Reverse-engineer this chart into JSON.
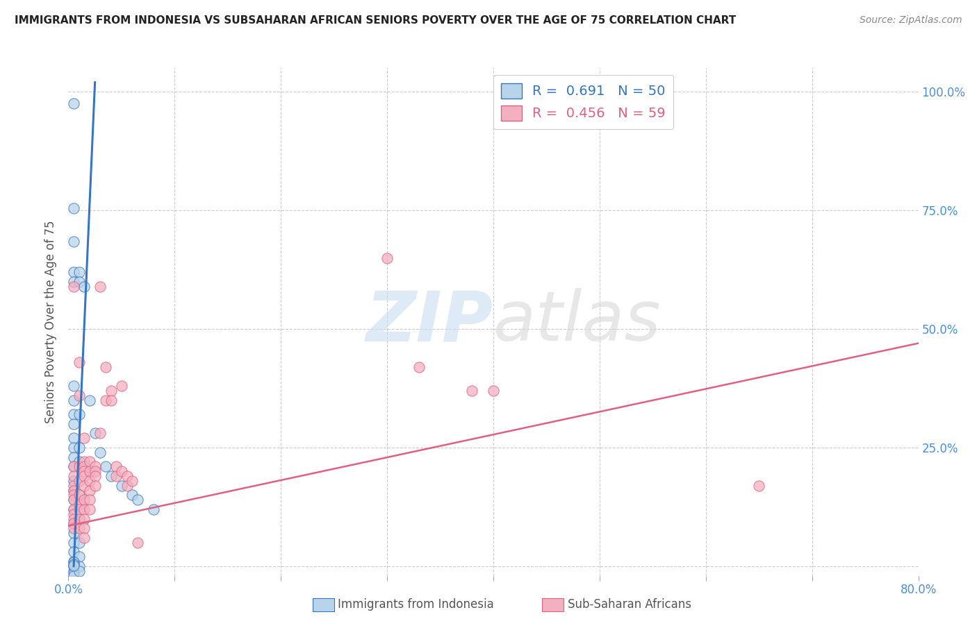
{
  "title": "IMMIGRANTS FROM INDONESIA VS SUBSAHARAN AFRICAN SENIORS POVERTY OVER THE AGE OF 75 CORRELATION CHART",
  "source": "Source: ZipAtlas.com",
  "ylabel": "Seniors Poverty Over the Age of 75",
  "xlim": [
    0,
    0.8
  ],
  "ylim": [
    -0.02,
    1.05
  ],
  "color_indonesia": "#b8d4ea",
  "color_subsaharan": "#f2b0c0",
  "color_line_indonesia": "#3575c3",
  "color_line_subsaharan": "#e06080",
  "watermark": "ZIPatlas",
  "indonesia_points": [
    [
      0.005,
      0.975
    ],
    [
      0.005,
      0.755
    ],
    [
      0.005,
      0.685
    ],
    [
      0.005,
      0.62
    ],
    [
      0.005,
      0.6
    ],
    [
      0.005,
      0.38
    ],
    [
      0.005,
      0.35
    ],
    [
      0.005,
      0.32
    ],
    [
      0.005,
      0.3
    ],
    [
      0.005,
      0.27
    ],
    [
      0.005,
      0.25
    ],
    [
      0.005,
      0.23
    ],
    [
      0.005,
      0.21
    ],
    [
      0.005,
      0.18
    ],
    [
      0.005,
      0.16
    ],
    [
      0.005,
      0.14
    ],
    [
      0.005,
      0.12
    ],
    [
      0.005,
      0.09
    ],
    [
      0.005,
      0.07
    ],
    [
      0.005,
      0.05
    ],
    [
      0.005,
      0.03
    ],
    [
      0.005,
      0.01
    ],
    [
      0.005,
      0.0
    ],
    [
      0.005,
      -0.01
    ],
    [
      0.01,
      0.62
    ],
    [
      0.01,
      0.6
    ],
    [
      0.01,
      0.32
    ],
    [
      0.01,
      0.25
    ],
    [
      0.01,
      0.22
    ],
    [
      0.01,
      0.15
    ],
    [
      0.01,
      0.1
    ],
    [
      0.01,
      0.05
    ],
    [
      0.01,
      0.02
    ],
    [
      0.01,
      0.0
    ],
    [
      0.015,
      0.59
    ],
    [
      0.02,
      0.35
    ],
    [
      0.025,
      0.28
    ],
    [
      0.03,
      0.24
    ],
    [
      0.035,
      0.21
    ],
    [
      0.04,
      0.19
    ],
    [
      0.05,
      0.17
    ],
    [
      0.06,
      0.15
    ],
    [
      0.065,
      0.14
    ],
    [
      0.08,
      0.12
    ],
    [
      0.005,
      -0.015
    ],
    [
      0.005,
      -0.02
    ],
    [
      0.01,
      -0.01
    ],
    [
      0.005,
      0.008
    ],
    [
      0.005,
      0.004
    ],
    [
      0.005,
      0.002
    ]
  ],
  "subsaharan_points": [
    [
      0.005,
      0.59
    ],
    [
      0.01,
      0.43
    ],
    [
      0.03,
      0.59
    ],
    [
      0.005,
      0.21
    ],
    [
      0.005,
      0.19
    ],
    [
      0.005,
      0.17
    ],
    [
      0.005,
      0.16
    ],
    [
      0.005,
      0.15
    ],
    [
      0.005,
      0.14
    ],
    [
      0.005,
      0.12
    ],
    [
      0.005,
      0.11
    ],
    [
      0.005,
      0.1
    ],
    [
      0.005,
      0.09
    ],
    [
      0.005,
      0.08
    ],
    [
      0.01,
      0.36
    ],
    [
      0.01,
      0.21
    ],
    [
      0.01,
      0.18
    ],
    [
      0.01,
      0.15
    ],
    [
      0.01,
      0.13
    ],
    [
      0.01,
      0.12
    ],
    [
      0.01,
      0.1
    ],
    [
      0.01,
      0.08
    ],
    [
      0.015,
      0.27
    ],
    [
      0.015,
      0.22
    ],
    [
      0.015,
      0.21
    ],
    [
      0.015,
      0.2
    ],
    [
      0.015,
      0.19
    ],
    [
      0.015,
      0.17
    ],
    [
      0.015,
      0.14
    ],
    [
      0.015,
      0.12
    ],
    [
      0.015,
      0.1
    ],
    [
      0.015,
      0.08
    ],
    [
      0.015,
      0.06
    ],
    [
      0.02,
      0.22
    ],
    [
      0.02,
      0.2
    ],
    [
      0.02,
      0.18
    ],
    [
      0.02,
      0.16
    ],
    [
      0.02,
      0.14
    ],
    [
      0.02,
      0.12
    ],
    [
      0.025,
      0.21
    ],
    [
      0.025,
      0.2
    ],
    [
      0.025,
      0.19
    ],
    [
      0.025,
      0.17
    ],
    [
      0.03,
      0.28
    ],
    [
      0.035,
      0.42
    ],
    [
      0.035,
      0.35
    ],
    [
      0.04,
      0.37
    ],
    [
      0.04,
      0.35
    ],
    [
      0.045,
      0.21
    ],
    [
      0.045,
      0.19
    ],
    [
      0.05,
      0.38
    ],
    [
      0.05,
      0.2
    ],
    [
      0.055,
      0.19
    ],
    [
      0.055,
      0.17
    ],
    [
      0.06,
      0.18
    ],
    [
      0.065,
      0.05
    ],
    [
      0.3,
      0.65
    ],
    [
      0.33,
      0.42
    ],
    [
      0.38,
      0.37
    ],
    [
      0.4,
      0.37
    ],
    [
      0.65,
      0.17
    ]
  ],
  "indonesia_trend_x": [
    0.005,
    0.025
  ],
  "indonesia_trend_y": [
    0.0,
    1.02
  ],
  "subsaharan_trend_x": [
    0.0,
    0.8
  ],
  "subsaharan_trend_y": [
    0.085,
    0.47
  ]
}
